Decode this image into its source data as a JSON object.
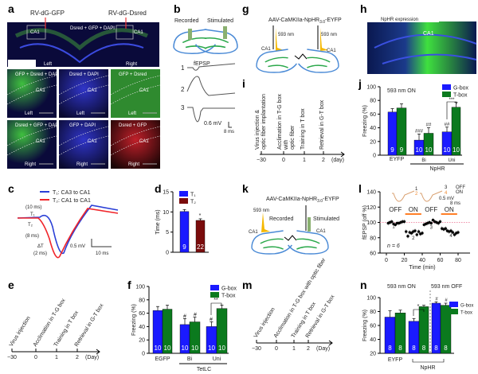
{
  "panel_labels": {
    "a": "a",
    "b": "b",
    "c": "c",
    "d": "d",
    "e": "e",
    "f": "f",
    "g": "g",
    "h": "h",
    "i": "i",
    "j": "j",
    "k": "k",
    "l": "l",
    "m": "m",
    "n": "n"
  },
  "panel_a": {
    "label_gfp": "RV-dG-GFP",
    "label_dsred": "RV-dG-Dsred",
    "overview_caption": "Dsred + GFP + DAPI",
    "ca1": "CA1",
    "left": "Left",
    "right": "Right",
    "tiles": [
      {
        "caption": "GFP + Dsred + DAPI",
        "side": "Left"
      },
      {
        "caption": "Dsred + DAPI",
        "side": "Left"
      },
      {
        "caption": "GFP + Dsred",
        "side": "Left"
      },
      {
        "caption": "Dsred + GFP + DAPI",
        "side": "Right"
      },
      {
        "caption": "GFP + DAPI",
        "side": "Right"
      },
      {
        "caption": "Dsred + GFP",
        "side": "Right"
      }
    ]
  },
  "panel_b": {
    "recorded": "Recorded",
    "stimulated": "Stimulated",
    "ca1": "CA1",
    "fepsp": "fEPSP",
    "traces": [
      "1",
      "2",
      "3"
    ],
    "scale_v": "0.6 mV",
    "scale_t": "8 ms"
  },
  "panel_c": {
    "legend": [
      "T₁: CA3 to CA1",
      "T₂: CA1 to CA1"
    ],
    "t1": "T₁",
    "t2": "T₂",
    "t1_val": "(10 ms)",
    "t2_val": "(8 ms)",
    "dt": "ΔT",
    "dt_val": "(2 ms)",
    "scale_v": "0.5 mV",
    "scale_t": "10 ms",
    "colors": {
      "T1": "#2a3fd6",
      "T2": "#f0262b"
    }
  },
  "timeline_e": {
    "events": [
      "Virus injection",
      "Acclimation in T-G box",
      "Training in T box",
      "Retrieval in G-T box"
    ],
    "ticks": [
      "−30",
      "0",
      "1",
      "2"
    ],
    "unit": "(Day)"
  },
  "timeline_i": {
    "events": [
      "Virus injection & optic fiber implantation",
      "Acclimation in T-G box with optic fiber",
      "Training in T box",
      "Retrieval in G-T box"
    ],
    "ticks": [
      "−30",
      "0",
      "1",
      "2"
    ],
    "unit": "(day)"
  },
  "timeline_m": {
    "events": [
      "Virus injection",
      "Acclimation in T-G box with optic fiber",
      "Training in T box",
      "Retrieval in G-T box"
    ],
    "ticks": [
      "−30",
      "0",
      "1",
      "2"
    ],
    "unit": "(Day)"
  },
  "panel_g": {
    "virus_pre": "AAV-CaMKIIa-NpHR",
    "virus_sub": "3.0",
    "virus_post": "-EYFP",
    "light": "593 nm",
    "ca1": "CA1"
  },
  "panel_h": {
    "title": "NpHR expression",
    "ca1": "CA1"
  },
  "panel_k": {
    "virus_pre": "AAV-CaMKIIa-NpHR",
    "virus_sub": "3.0",
    "virus_post": "-EYFP",
    "light": "593 nm",
    "recorded": "Recorded",
    "stimulated": "Stimulated",
    "ca1": "CA1"
  },
  "colors": {
    "gbox": "#1a1aff",
    "tbox": "#0b7a1e",
    "t2": "#7a0c0c",
    "light": "#f5b800",
    "on_bar": "#ff7f27"
  },
  "chart_data": [
    {
      "id": "d",
      "type": "bar",
      "ylabel": "Time (ms)",
      "ylim": [
        0,
        15
      ],
      "yticks": [
        "0",
        "5",
        "10",
        "15"
      ],
      "legend": [
        "T₁",
        "T₂"
      ],
      "bars": [
        {
          "name": "T₁",
          "value": 10.1,
          "err": 0.5,
          "n": "9"
        },
        {
          "name": "T₂",
          "value": 7.9,
          "err": 0.4,
          "n": "22"
        }
      ],
      "annotations": [
        "*"
      ]
    },
    {
      "id": "f",
      "type": "bar",
      "ylabel": "Freezing (%)",
      "ylim": [
        0,
        100
      ],
      "yticks": [
        "0",
        "20",
        "40",
        "60",
        "80",
        "100"
      ],
      "categories": [
        "EGFP",
        "Bi",
        "Uni"
      ],
      "group_label": "TetLC",
      "legend": [
        "G-box",
        "T-box"
      ],
      "series": [
        {
          "name": "G-box",
          "values": [
            64,
            43,
            40
          ],
          "err": [
            6,
            9,
            7
          ],
          "n": [
            "10",
            "10",
            "10"
          ]
        },
        {
          "name": "T-box",
          "values": [
            66,
            47,
            67
          ],
          "err": [
            6,
            7,
            5
          ],
          "n": [
            "10",
            "10",
            "10"
          ]
        }
      ],
      "annotations": {
        "hash": "#",
        "stars": "**"
      }
    },
    {
      "id": "j",
      "type": "bar",
      "ylabel": "Freezing (%)",
      "ylim": [
        0,
        100
      ],
      "yticks": [
        "0",
        "20",
        "40",
        "60",
        "80",
        "100"
      ],
      "note": "593 nm ON",
      "categories": [
        "EYFP",
        "Bi",
        "Uni"
      ],
      "group_label": "NpHR",
      "legend": [
        "G-box",
        "T-box"
      ],
      "series": [
        {
          "name": "G-box",
          "values": [
            63,
            22,
            34
          ],
          "err": [
            5,
            9,
            7
          ],
          "n": [
            "9",
            "10",
            "10"
          ]
        },
        {
          "name": "T-box",
          "values": [
            69,
            32,
            70
          ],
          "err": [
            6,
            8,
            7
          ],
          "n": [
            "9",
            "10",
            "10"
          ]
        }
      ],
      "annotations": {
        "bi_g": "###",
        "bi_t": "##",
        "uni_g": "##",
        "stars": "***"
      }
    },
    {
      "id": "l",
      "type": "scatter",
      "ylabel": "fEPSP (off %)",
      "xlabel": "Time (min)",
      "xlim": [
        0,
        80
      ],
      "ylim": [
        60,
        140
      ],
      "xticks": [
        "0",
        "20",
        "40",
        "60",
        "80"
      ],
      "yticks": [
        "60",
        "80",
        "100",
        "120",
        "140"
      ],
      "reference_line": 100,
      "n_label": "n = 6",
      "epochs": [
        "OFF",
        "ON",
        "OFF",
        "ON"
      ],
      "epoch_marks": [
        "1",
        "2",
        "3",
        "4"
      ],
      "inset": {
        "labels": [
          "1",
          "2",
          "3",
          "4"
        ],
        "legend": [
          "OFF",
          "ON"
        ],
        "scale": "0.5 mV",
        "scale_t": "8 ms"
      },
      "x": [
        2,
        4,
        6,
        8,
        10,
        12,
        14,
        16,
        18,
        20,
        22,
        24,
        26,
        28,
        30,
        32,
        34,
        36,
        38,
        40,
        42,
        44,
        46,
        48,
        50,
        52,
        54,
        56,
        58,
        60,
        62,
        64,
        66,
        68,
        70,
        72,
        74,
        76,
        78,
        80
      ],
      "y": [
        99,
        100,
        101,
        98,
        97,
        99,
        99,
        100,
        101,
        101,
        88,
        82,
        87,
        86,
        88,
        89,
        84,
        88,
        85,
        86,
        97,
        98,
        99,
        100,
        99,
        103,
        101,
        100,
        99,
        101,
        92,
        91,
        92,
        89,
        88,
        89,
        87,
        84,
        86,
        87
      ]
    },
    {
      "id": "n",
      "type": "bar",
      "ylabel": "Freezing (%)",
      "ylim": [
        20,
        100
      ],
      "yticks": [
        "20",
        "40",
        "60",
        "80",
        "100"
      ],
      "notes": [
        "593 nm ON",
        "593 nm OFF"
      ],
      "categories": [
        "EYFP",
        "NpHR ON",
        "NpHR OFF"
      ],
      "category_labels": [
        "EYFP",
        "NpHR"
      ],
      "legend": [
        "G-box",
        "T-box"
      ],
      "series": [
        {
          "name": "G-box",
          "values": [
            72,
            66,
            92
          ],
          "err": [
            9,
            4,
            2
          ],
          "n": [
            "8",
            "8",
            "8"
          ]
        },
        {
          "name": "T-box",
          "values": [
            78,
            87,
            89
          ],
          "err": [
            4,
            2,
            3
          ],
          "n": [
            "8",
            "8",
            "8"
          ]
        }
      ],
      "annotations": {
        "star": "*",
        "hash": "#"
      }
    }
  ]
}
